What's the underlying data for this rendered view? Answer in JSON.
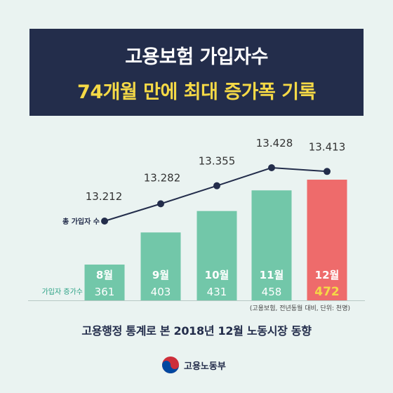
{
  "title_line1": "고용보험 가입자수",
  "title_line2": "74개월 만에 최대 증가폭 기록",
  "footer": "고용행정 통계로 본 2018년 12월 노동시장 동향",
  "logo_text": "고용노동부",
  "colors": {
    "header_bg": "#232d4b",
    "title_yellow": "#f5d946",
    "bar_green": "#72c7a9",
    "bar_red": "#ee6b6b",
    "line": "#232d4b",
    "background": "#eaf3f1"
  },
  "chart_data": {
    "type": "bar",
    "categories": [
      "8월",
      "9월",
      "10월",
      "11월",
      "12월"
    ],
    "series": [
      {
        "name": "가입자 증가수",
        "type": "bar",
        "values": [
          361,
          403,
          431,
          458,
          472
        ]
      },
      {
        "name": "총 가입자 수",
        "type": "line",
        "values": [
          13.212,
          13.282,
          13.355,
          13.428,
          13.413
        ]
      }
    ],
    "line_labels": [
      "13.212",
      "13.282",
      "13.355",
      "13.428",
      "13.413"
    ],
    "bar_label": "가입자 증가수",
    "line_label": "총 가입자 수",
    "note": "(고용보험, 전년동월 대비, 단위: 천명)",
    "highlight_category": "12월"
  }
}
